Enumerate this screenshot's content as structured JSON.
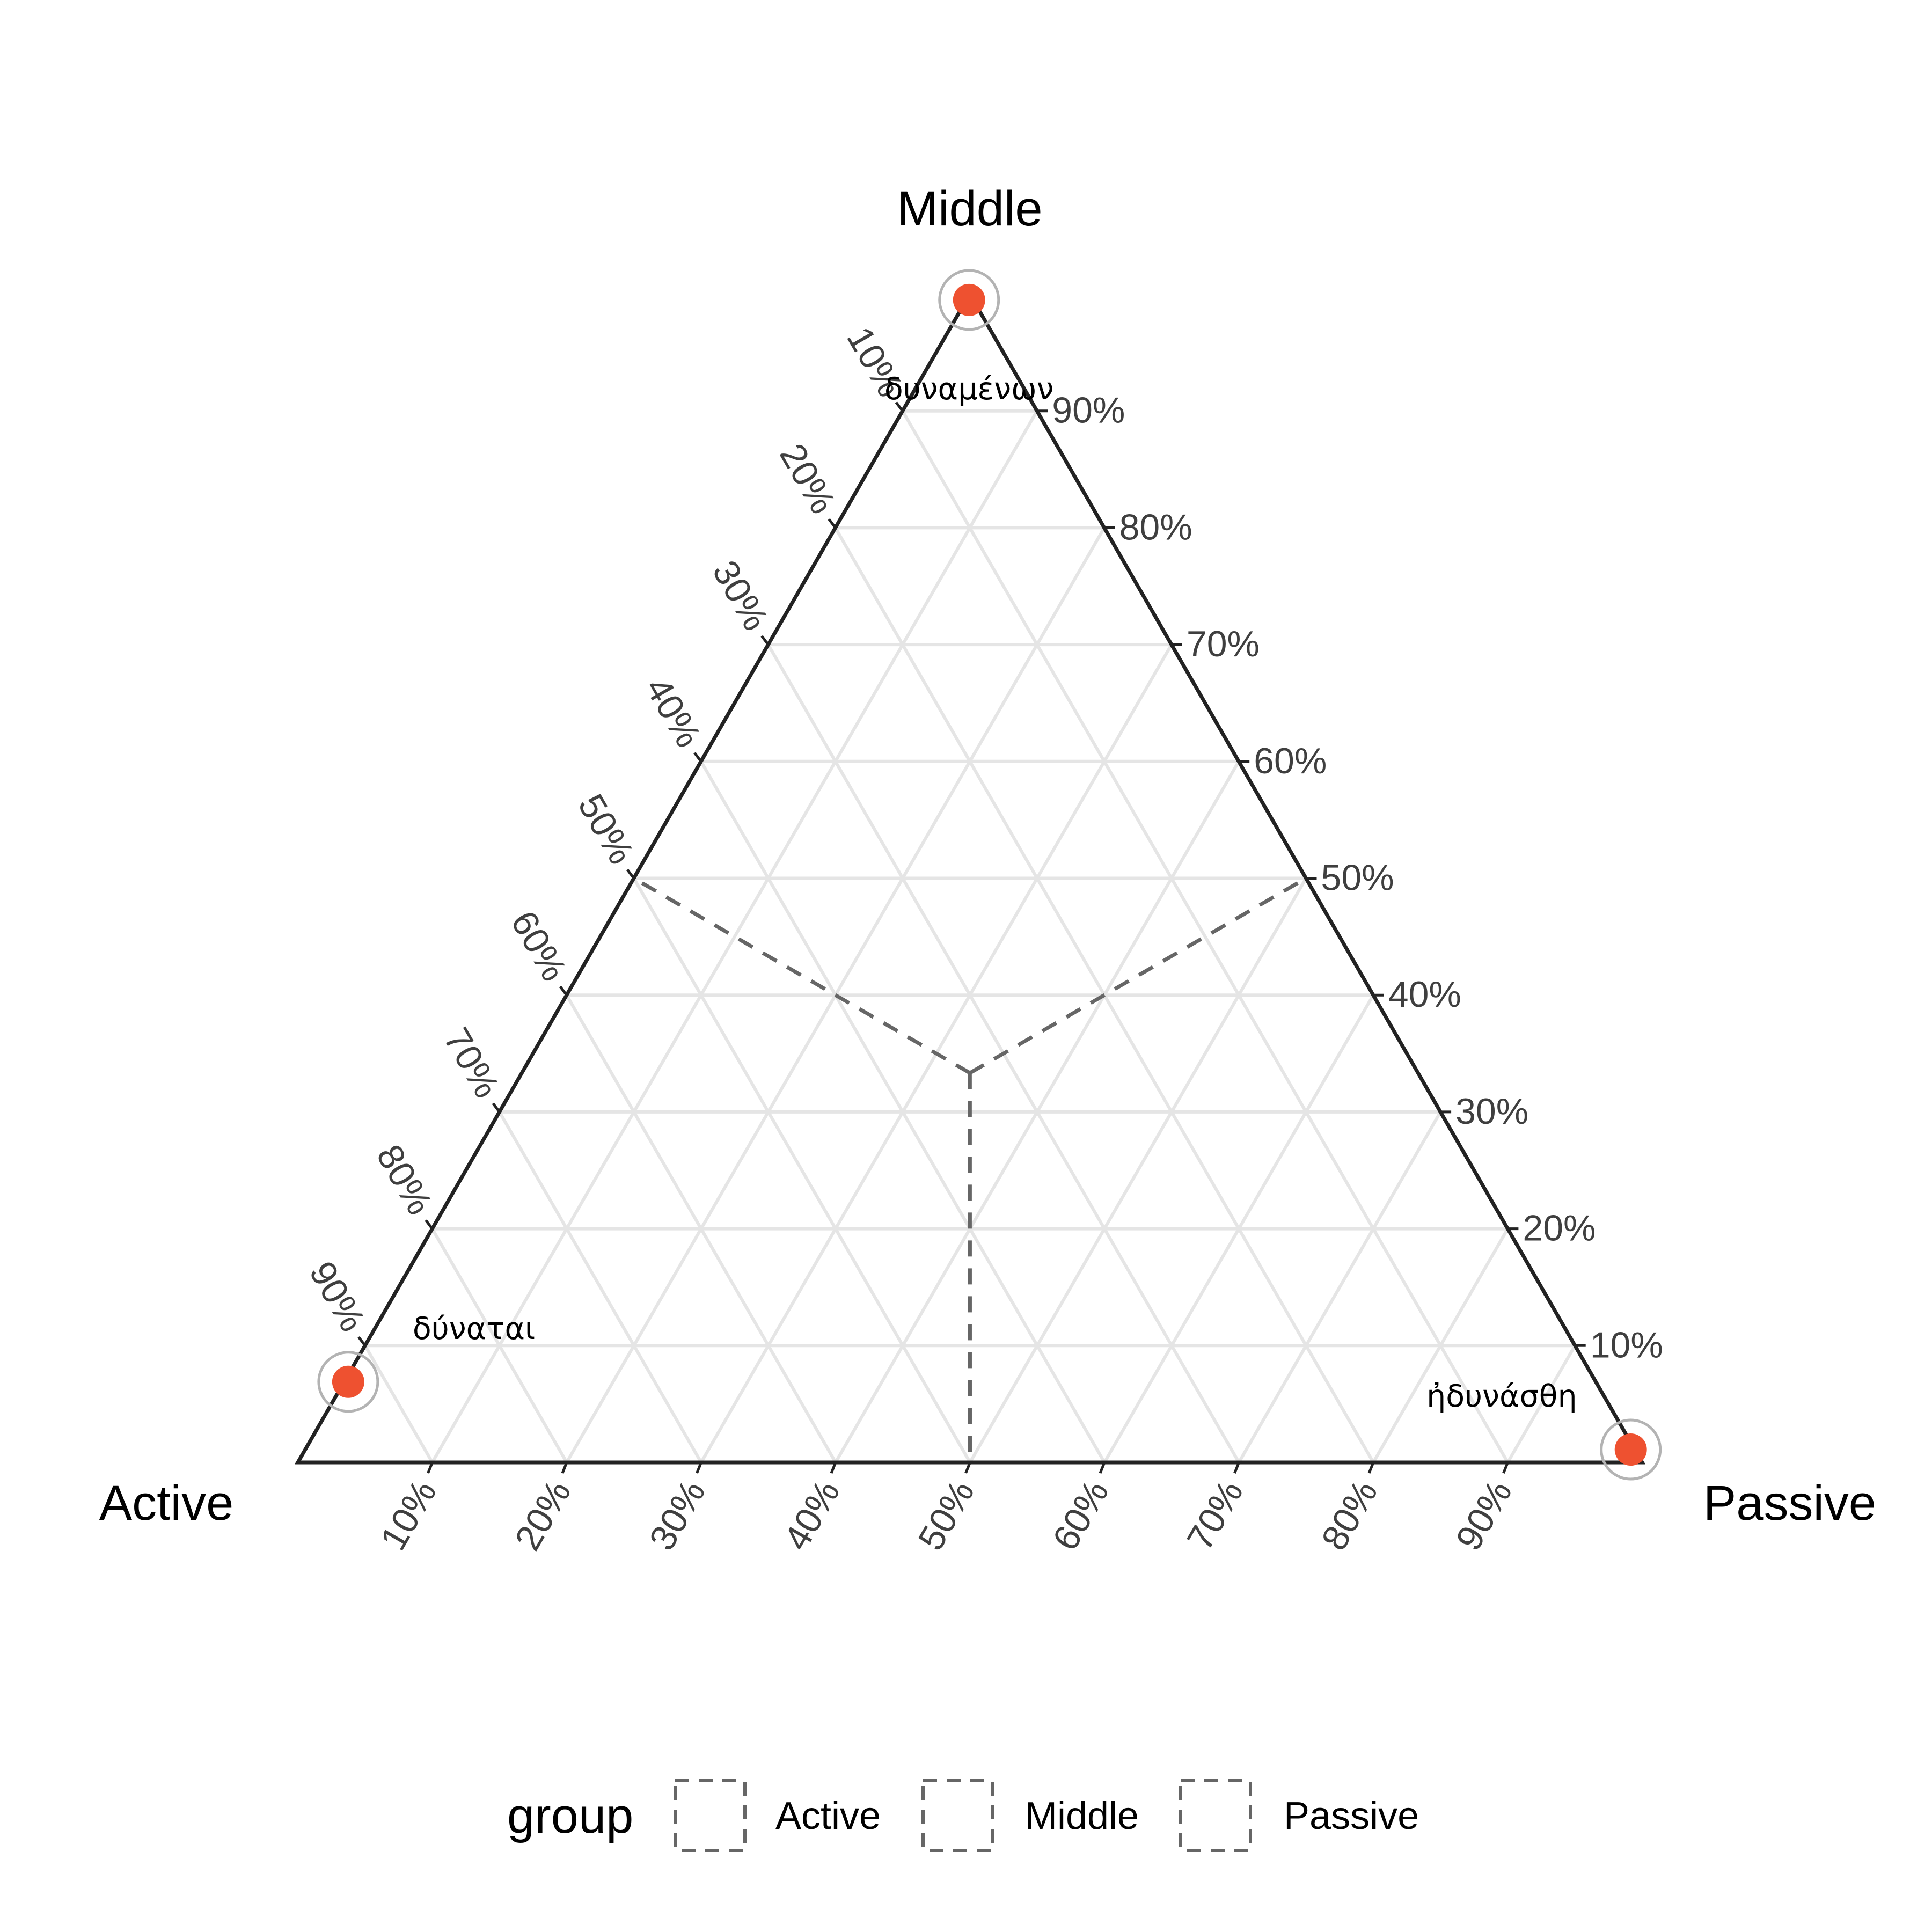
{
  "chart_data": {
    "type": "ternary",
    "axes": {
      "left": "Active",
      "top": "Middle",
      "right": "Passive"
    },
    "ticks": [
      10,
      20,
      30,
      40,
      50,
      60,
      70,
      80,
      90
    ],
    "tick_suffix": "%",
    "grid": true,
    "points": [
      {
        "label": "δύναται",
        "active": 92.8,
        "middle": 6.9,
        "passive": 0.3
      },
      {
        "label": "δυναμένων",
        "active": 0.3,
        "middle": 99.5,
        "passive": 0.2
      },
      {
        "label": "ἠδυνάσθη",
        "active": 0.3,
        "middle": 1.1,
        "passive": 98.6
      }
    ],
    "reference_lines": {
      "style": "dashed",
      "center": {
        "active": 33.3,
        "middle": 33.3,
        "passive": 33.3
      },
      "ends": [
        {
          "active": 50,
          "middle": 50,
          "passive": 0
        },
        {
          "active": 0,
          "middle": 50,
          "passive": 50
        },
        {
          "active": 50,
          "middle": 0,
          "passive": 50
        }
      ]
    },
    "colors": {
      "point": "#ee5130",
      "halo": "#b3b3b3",
      "frame": "#222222",
      "grid": "#e5e5e5",
      "reference": "#666666"
    },
    "legend": {
      "title": "group",
      "position": "bottom",
      "items": [
        "Active",
        "Middle",
        "Passive"
      ]
    }
  }
}
